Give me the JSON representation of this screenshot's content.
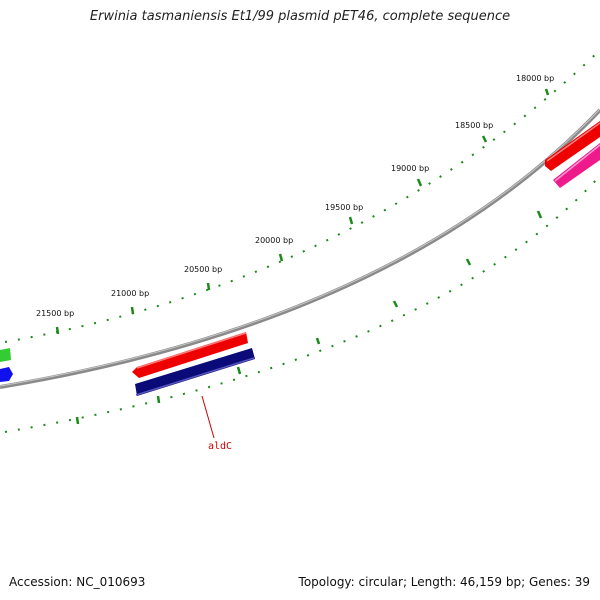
{
  "title": "Erwinia tasmaniensis Et1/99 plasmid pET46, complete sequence",
  "accession_text": "Accession: NC_010693",
  "summary_text": "Topology: circular; Length: 46,159 bp; Genes: 39",
  "bp_labels": [
    "18000 bp",
    "18500 bp",
    "19000 bp",
    "19500 bp",
    "20000 bp",
    "20500 bp",
    "21000 bp",
    "21500 bp"
  ],
  "gene_labels": [
    "aldC"
  ],
  "colors": {
    "backbone": "#808080",
    "tick": "#1a8a1a",
    "gene_red": "#ee0000",
    "gene_navy": "#0a0a78",
    "gene_pink": "#ee1a8c",
    "gene_green": "#33cc33",
    "gene_blue": "#1111ee",
    "label": "#cc0000"
  }
}
